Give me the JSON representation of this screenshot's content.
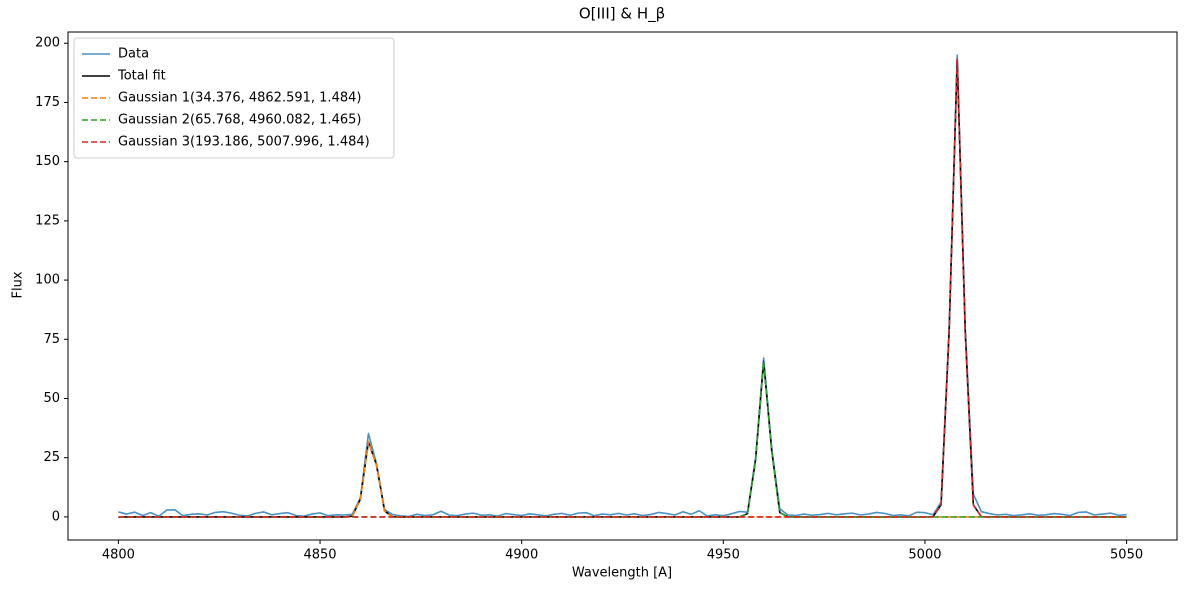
{
  "chart_data": {
    "type": "line",
    "title": "O[III] & H_β",
    "xlabel": "Wavelength [A]",
    "ylabel": "Flux",
    "xlim": [
      4787.5,
      5062.5
    ],
    "xticks": [
      4800,
      4850,
      4900,
      4950,
      5000,
      5050
    ],
    "ylim": [
      -9.75,
      204.75
    ],
    "yticks": [
      0,
      25,
      50,
      75,
      100,
      125,
      150,
      175,
      200
    ],
    "grid": false,
    "legend": "upper left",
    "x": [
      4800,
      4802,
      4804,
      4806,
      4808,
      4810,
      4812,
      4814,
      4816,
      4818,
      4820,
      4822,
      4824,
      4826,
      4828,
      4830,
      4832,
      4834,
      4836,
      4838,
      4840,
      4842,
      4844,
      4846,
      4848,
      4850,
      4852,
      4854,
      4856,
      4858,
      4860,
      4862,
      4864,
      4866,
      4868,
      4870,
      4872,
      4874,
      4876,
      4878,
      4880,
      4882,
      4884,
      4886,
      4888,
      4890,
      4892,
      4894,
      4896,
      4898,
      4900,
      4902,
      4904,
      4906,
      4908,
      4910,
      4912,
      4914,
      4916,
      4918,
      4920,
      4922,
      4924,
      4926,
      4928,
      4930,
      4932,
      4934,
      4936,
      4938,
      4940,
      4942,
      4944,
      4946,
      4948,
      4950,
      4952,
      4954,
      4956,
      4958,
      4960,
      4962,
      4964,
      4966,
      4968,
      4970,
      4972,
      4974,
      4976,
      4978,
      4980,
      4982,
      4984,
      4986,
      4988,
      4990,
      4992,
      4994,
      4996,
      4998,
      5000,
      5002,
      5004,
      5006,
      5008,
      5010,
      5012,
      5014,
      5016,
      5018,
      5020,
      5022,
      5024,
      5026,
      5028,
      5030,
      5032,
      5034,
      5036,
      5038,
      5040,
      5042,
      5044,
      5046,
      5048,
      5050
    ],
    "series": [
      {
        "name": "Data",
        "color": "#1f77b4",
        "alpha": 0.8,
        "linestyle": "solid",
        "values": [
          2.1,
          1.2,
          2.0,
          0.6,
          1.8,
          0.3,
          2.9,
          3.0,
          0.5,
          1.1,
          1.3,
          0.8,
          1.9,
          2.2,
          1.6,
          0.7,
          0.4,
          1.5,
          2.1,
          0.9,
          1.4,
          1.8,
          0.6,
          0.3,
          1.2,
          1.7,
          0.5,
          0.9,
          0.8,
          1.1,
          8.0,
          35.2,
          22.5,
          3.1,
          1.0,
          0.4,
          0.2,
          1.1,
          0.6,
          0.9,
          2.4,
          0.8,
          0.5,
          1.2,
          1.6,
          0.7,
          0.9,
          0.3,
          1.4,
          1.0,
          0.6,
          1.3,
          0.9,
          0.4,
          1.1,
          1.5,
          0.7,
          1.6,
          1.8,
          0.5,
          1.2,
          0.9,
          1.5,
          0.8,
          1.3,
          0.6,
          1.0,
          1.9,
          1.4,
          0.8,
          2.2,
          1.1,
          2.6,
          0.4,
          0.9,
          0.5,
          1.3,
          2.3,
          2.0,
          25.0,
          67.1,
          29.0,
          3.4,
          0.8,
          0.6,
          1.2,
          0.7,
          1.0,
          1.5,
          0.9,
          1.3,
          1.6,
          0.8,
          1.2,
          1.9,
          1.5,
          0.6,
          0.9,
          0.4,
          2.0,
          1.8,
          0.9,
          6.2,
          80.1,
          195.0,
          79.8,
          9.6,
          2.2,
          1.4,
          0.8,
          1.1,
          0.5,
          0.9,
          1.3,
          0.7,
          0.9,
          1.4,
          1.1,
          0.6,
          1.9,
          2.1,
          0.8,
          1.2,
          1.6,
          0.7,
          1.0
        ]
      },
      {
        "name": "Total fit",
        "color": "#000000",
        "alpha": 1,
        "linestyle": "solid",
        "values": [
          0,
          0,
          0,
          0,
          0,
          0,
          0,
          0,
          0,
          0,
          0,
          0,
          0,
          0,
          0,
          0,
          0,
          0,
          0,
          0,
          0,
          0,
          0,
          0,
          0,
          0,
          0,
          0,
          0,
          0.29,
          7.49,
          31.76,
          21.9,
          2.46,
          0.04,
          0,
          0,
          0,
          0,
          0,
          0,
          0,
          0,
          0,
          0,
          0,
          0,
          0,
          0,
          0,
          0,
          0,
          0,
          0,
          0,
          0,
          0,
          0,
          0,
          0,
          0,
          0,
          0,
          0,
          0,
          0,
          0,
          0,
          0,
          0,
          0,
          0,
          0,
          0,
          0,
          0,
          0,
          0.01,
          1.36,
          23.95,
          65.66,
          27.91,
          1.84,
          0.02,
          0,
          0,
          0,
          0,
          0,
          0,
          0,
          0,
          0,
          0,
          0,
          0,
          0,
          0,
          0,
          0,
          0,
          0.06,
          5.15,
          78.2,
          193.19,
          77.6,
          5.07,
          0.05,
          0,
          0,
          0,
          0,
          0,
          0,
          0,
          0,
          0,
          0,
          0,
          0,
          0,
          0,
          0,
          0,
          0,
          0
        ]
      },
      {
        "name": "Gaussian 1(34.376, 4862.591, 1.484)",
        "color": "#ff7f0e",
        "alpha": 1,
        "linestyle": "dashed",
        "values": [
          0,
          0,
          0,
          0,
          0,
          0,
          0,
          0,
          0,
          0,
          0,
          0,
          0,
          0,
          0,
          0,
          0,
          0,
          0,
          0,
          0,
          0,
          0,
          0,
          0,
          0,
          0,
          0,
          0,
          0.29,
          7.49,
          31.76,
          21.9,
          2.46,
          0.04,
          0,
          0,
          0,
          0,
          0,
          0,
          0,
          0,
          0,
          0,
          0,
          0,
          0,
          0,
          0,
          0,
          0,
          0,
          0,
          0,
          0,
          0,
          0,
          0,
          0,
          0,
          0,
          0,
          0,
          0,
          0,
          0,
          0,
          0,
          0,
          0,
          0,
          0,
          0,
          0,
          0,
          0,
          0,
          0,
          0,
          0,
          0,
          0,
          0,
          0,
          0,
          0,
          0,
          0,
          0,
          0,
          0,
          0,
          0,
          0,
          0,
          0,
          0,
          0,
          0,
          0,
          0,
          0,
          0,
          0,
          0,
          0,
          0,
          0,
          0,
          0,
          0,
          0,
          0,
          0,
          0,
          0,
          0,
          0,
          0,
          0,
          0,
          0,
          0,
          0,
          0
        ]
      },
      {
        "name": "Gaussian 2(65.768, 4960.082, 1.465)",
        "color": "#2ca02c",
        "alpha": 1,
        "linestyle": "dashed",
        "values": [
          0,
          0,
          0,
          0,
          0,
          0,
          0,
          0,
          0,
          0,
          0,
          0,
          0,
          0,
          0,
          0,
          0,
          0,
          0,
          0,
          0,
          0,
          0,
          0,
          0,
          0,
          0,
          0,
          0,
          0,
          0,
          0,
          0,
          0,
          0,
          0,
          0,
          0,
          0,
          0,
          0,
          0,
          0,
          0,
          0,
          0,
          0,
          0,
          0,
          0,
          0,
          0,
          0,
          0,
          0,
          0,
          0,
          0,
          0,
          0,
          0,
          0,
          0,
          0,
          0,
          0,
          0,
          0,
          0,
          0,
          0,
          0,
          0,
          0,
          0,
          0,
          0,
          0.01,
          1.36,
          23.95,
          65.66,
          27.91,
          1.84,
          0.02,
          0,
          0,
          0,
          0,
          0,
          0,
          0,
          0,
          0,
          0,
          0,
          0,
          0,
          0,
          0,
          0,
          0,
          0,
          0,
          0,
          0,
          0,
          0,
          0,
          0,
          0,
          0,
          0,
          0,
          0,
          0,
          0,
          0,
          0,
          0,
          0,
          0,
          0,
          0,
          0,
          0,
          0
        ]
      },
      {
        "name": "Gaussian 3(193.186, 5007.996, 1.484)",
        "color": "#d62728",
        "alpha": 1,
        "linestyle": "dashed",
        "values": [
          0,
          0,
          0,
          0,
          0,
          0,
          0,
          0,
          0,
          0,
          0,
          0,
          0,
          0,
          0,
          0,
          0,
          0,
          0,
          0,
          0,
          0,
          0,
          0,
          0,
          0,
          0,
          0,
          0,
          0,
          0,
          0,
          0,
          0,
          0,
          0,
          0,
          0,
          0,
          0,
          0,
          0,
          0,
          0,
          0,
          0,
          0,
          0,
          0,
          0,
          0,
          0,
          0,
          0,
          0,
          0,
          0,
          0,
          0,
          0,
          0,
          0,
          0,
          0,
          0,
          0,
          0,
          0,
          0,
          0,
          0,
          0,
          0,
          0,
          0,
          0,
          0,
          0,
          0,
          0,
          0,
          0,
          0,
          0,
          0,
          0,
          0,
          0,
          0,
          0,
          0,
          0,
          0,
          0,
          0,
          0,
          0,
          0,
          0,
          0,
          0,
          0.06,
          5.15,
          78.2,
          193.19,
          77.6,
          5.07,
          0.05,
          0,
          0,
          0,
          0,
          0,
          0,
          0,
          0,
          0,
          0,
          0,
          0,
          0,
          0,
          0,
          0,
          0,
          0
        ]
      }
    ]
  }
}
